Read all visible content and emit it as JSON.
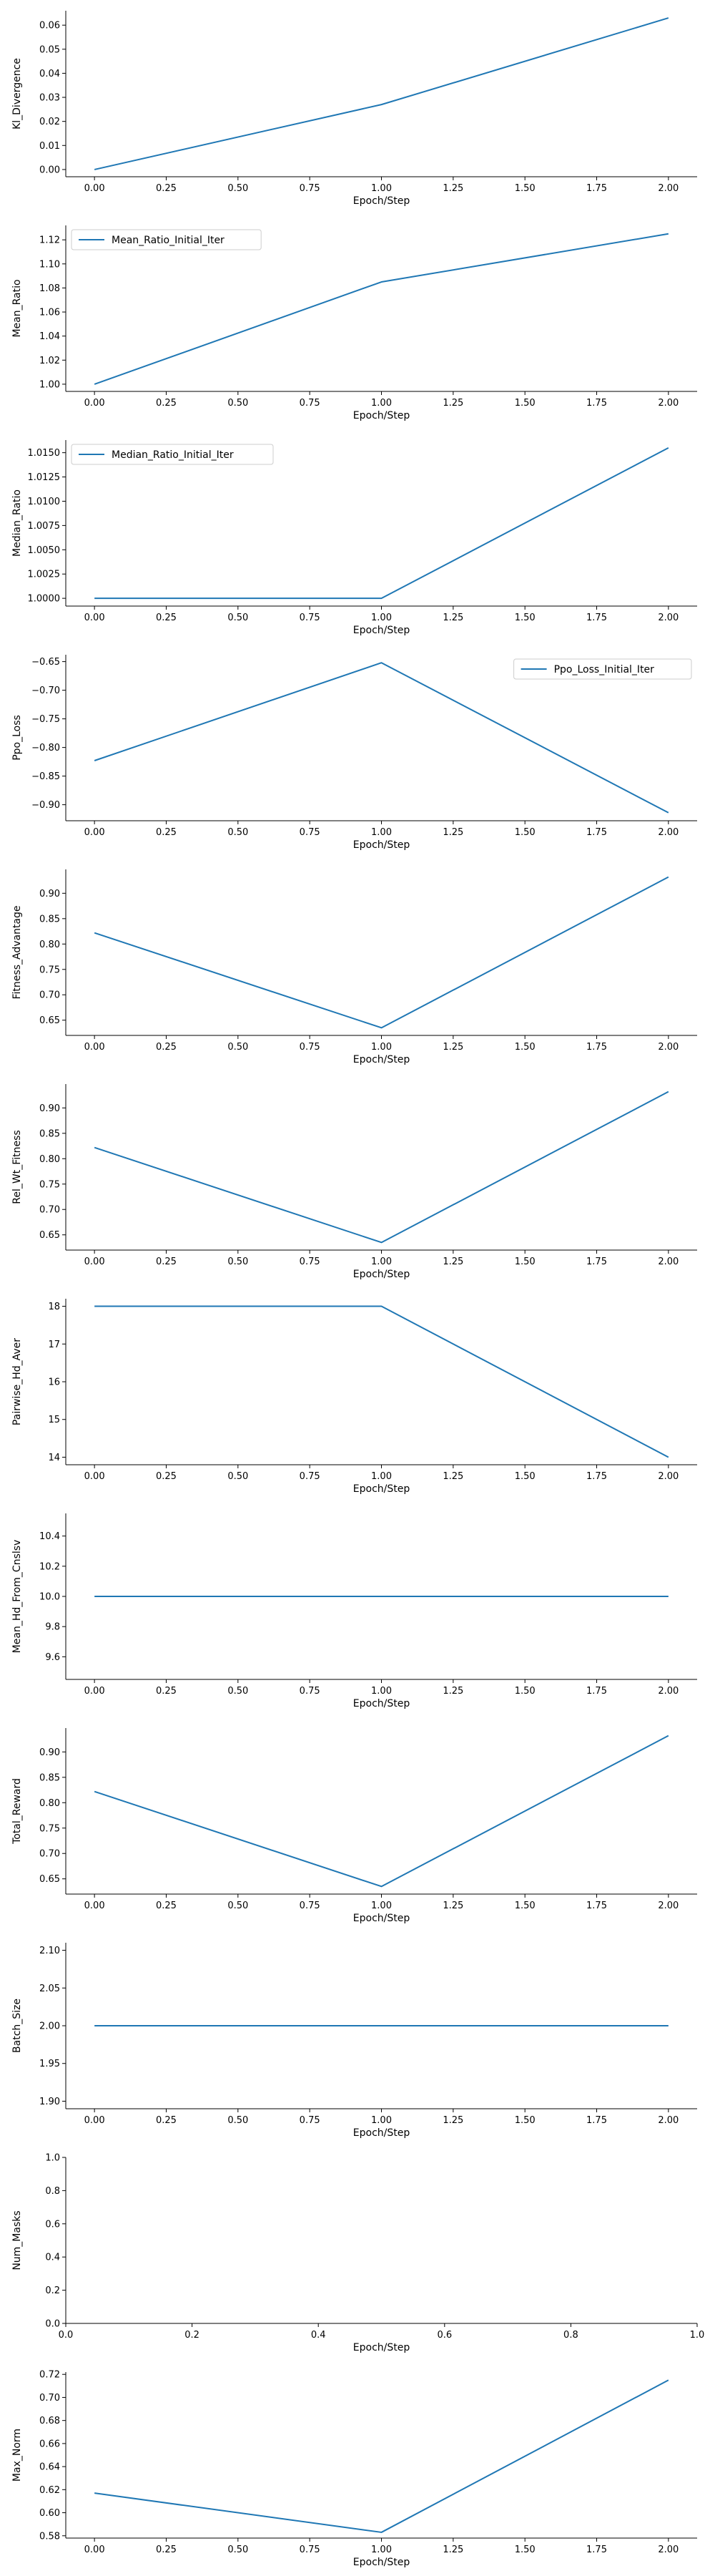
{
  "figure": {
    "line_color": "#1f77b4",
    "axis_color": "#000000",
    "legend_border_color": "#cccccc"
  },
  "chart_data": [
    {
      "type": "line",
      "xlabel": "Epoch/Step",
      "ylabel": "Kl_Divergence",
      "x": [
        0,
        1,
        2
      ],
      "series": [
        {
          "values": [
            0.0,
            0.027,
            0.063
          ]
        }
      ],
      "xlim": [
        -0.1,
        2.1
      ],
      "ylim": [
        -0.003,
        0.066
      ],
      "xticks": [
        0,
        0.25,
        0.5,
        0.75,
        1,
        1.25,
        1.5,
        1.75,
        2
      ],
      "xtick_labels": [
        "0.00",
        "0.25",
        "0.50",
        "0.75",
        "1.00",
        "1.25",
        "1.50",
        "1.75",
        "2.00"
      ],
      "yticks": [
        0,
        0.01,
        0.02,
        0.03,
        0.04,
        0.05,
        0.06
      ],
      "ytick_labels": [
        "0.00",
        "0.01",
        "0.02",
        "0.03",
        "0.04",
        "0.05",
        "0.06"
      ],
      "legend": null,
      "grid": false
    },
    {
      "type": "line",
      "xlabel": "Epoch/Step",
      "ylabel": "Mean_Ratio",
      "x": [
        0,
        1,
        2
      ],
      "series": [
        {
          "name": "Mean_Ratio_Initial_Iter",
          "values": [
            1.0,
            1.085,
            1.125
          ]
        }
      ],
      "xlim": [
        -0.1,
        2.1
      ],
      "ylim": [
        0.994,
        1.132
      ],
      "xticks": [
        0,
        0.25,
        0.5,
        0.75,
        1,
        1.25,
        1.5,
        1.75,
        2
      ],
      "xtick_labels": [
        "0.00",
        "0.25",
        "0.50",
        "0.75",
        "1.00",
        "1.25",
        "1.50",
        "1.75",
        "2.00"
      ],
      "yticks": [
        1.0,
        1.02,
        1.04,
        1.06,
        1.08,
        1.1,
        1.12
      ],
      "ytick_labels": [
        "1.00",
        "1.02",
        "1.04",
        "1.06",
        "1.08",
        "1.10",
        "1.12"
      ],
      "legend": "upper left",
      "grid": false
    },
    {
      "type": "line",
      "xlabel": "Epoch/Step",
      "ylabel": "Median_Ratio",
      "x": [
        0,
        1,
        2
      ],
      "series": [
        {
          "name": "Median_Ratio_Initial_Iter",
          "values": [
            1.0,
            1.0,
            1.0155
          ]
        }
      ],
      "xlim": [
        -0.1,
        2.1
      ],
      "ylim": [
        0.9992,
        1.0163
      ],
      "xticks": [
        0,
        0.25,
        0.5,
        0.75,
        1,
        1.25,
        1.5,
        1.75,
        2
      ],
      "xtick_labels": [
        "0.00",
        "0.25",
        "0.50",
        "0.75",
        "1.00",
        "1.25",
        "1.50",
        "1.75",
        "2.00"
      ],
      "yticks": [
        1.0,
        1.0025,
        1.005,
        1.0075,
        1.01,
        1.0125,
        1.015
      ],
      "ytick_labels": [
        "1.0000",
        "1.0025",
        "1.0050",
        "1.0075",
        "1.0100",
        "1.0125",
        "1.0150"
      ],
      "legend": "upper left",
      "grid": false
    },
    {
      "type": "line",
      "xlabel": "Epoch/Step",
      "ylabel": "Ppo_Loss",
      "x": [
        0,
        1,
        2
      ],
      "series": [
        {
          "name": "Ppo_Loss_Initial_Iter",
          "values": [
            -0.823,
            -0.652,
            -0.914
          ]
        }
      ],
      "xlim": [
        -0.1,
        2.1
      ],
      "ylim": [
        -0.928,
        -0.638
      ],
      "xticks": [
        0,
        0.25,
        0.5,
        0.75,
        1,
        1.25,
        1.5,
        1.75,
        2
      ],
      "xtick_labels": [
        "0.00",
        "0.25",
        "0.50",
        "0.75",
        "1.00",
        "1.25",
        "1.50",
        "1.75",
        "2.00"
      ],
      "yticks": [
        -0.9,
        -0.85,
        -0.8,
        -0.75,
        -0.7,
        -0.65
      ],
      "ytick_labels": [
        "−0.90",
        "−0.85",
        "−0.80",
        "−0.75",
        "−0.70",
        "−0.65"
      ],
      "legend": "upper right",
      "grid": false
    },
    {
      "type": "line",
      "xlabel": "Epoch/Step",
      "ylabel": "Fitness_Advantage",
      "x": [
        0,
        1,
        2
      ],
      "series": [
        {
          "values": [
            0.822,
            0.635,
            0.932
          ]
        }
      ],
      "xlim": [
        -0.1,
        2.1
      ],
      "ylim": [
        0.62,
        0.947
      ],
      "xticks": [
        0,
        0.25,
        0.5,
        0.75,
        1,
        1.25,
        1.5,
        1.75,
        2
      ],
      "xtick_labels": [
        "0.00",
        "0.25",
        "0.50",
        "0.75",
        "1.00",
        "1.25",
        "1.50",
        "1.75",
        "2.00"
      ],
      "yticks": [
        0.65,
        0.7,
        0.75,
        0.8,
        0.85,
        0.9
      ],
      "ytick_labels": [
        "0.65",
        "0.70",
        "0.75",
        "0.80",
        "0.85",
        "0.90"
      ],
      "legend": null,
      "grid": false
    },
    {
      "type": "line",
      "xlabel": "Epoch/Step",
      "ylabel": "Rel_Wt_Fitness",
      "x": [
        0,
        1,
        2
      ],
      "series": [
        {
          "values": [
            0.822,
            0.635,
            0.932
          ]
        }
      ],
      "xlim": [
        -0.1,
        2.1
      ],
      "ylim": [
        0.62,
        0.947
      ],
      "xticks": [
        0,
        0.25,
        0.5,
        0.75,
        1,
        1.25,
        1.5,
        1.75,
        2
      ],
      "xtick_labels": [
        "0.00",
        "0.25",
        "0.50",
        "0.75",
        "1.00",
        "1.25",
        "1.50",
        "1.75",
        "2.00"
      ],
      "yticks": [
        0.65,
        0.7,
        0.75,
        0.8,
        0.85,
        0.9
      ],
      "ytick_labels": [
        "0.65",
        "0.70",
        "0.75",
        "0.80",
        "0.85",
        "0.90"
      ],
      "legend": null,
      "grid": false
    },
    {
      "type": "line",
      "xlabel": "Epoch/Step",
      "ylabel": "Pairwise_Hd_Aver",
      "x": [
        0,
        1,
        2
      ],
      "series": [
        {
          "values": [
            18,
            18,
            14
          ]
        }
      ],
      "xlim": [
        -0.1,
        2.1
      ],
      "ylim": [
        13.8,
        18.2
      ],
      "xticks": [
        0,
        0.25,
        0.5,
        0.75,
        1,
        1.25,
        1.5,
        1.75,
        2
      ],
      "xtick_labels": [
        "0.00",
        "0.25",
        "0.50",
        "0.75",
        "1.00",
        "1.25",
        "1.50",
        "1.75",
        "2.00"
      ],
      "yticks": [
        14,
        15,
        16,
        17,
        18
      ],
      "ytick_labels": [
        "14",
        "15",
        "16",
        "17",
        "18"
      ],
      "legend": null,
      "grid": false
    },
    {
      "type": "line",
      "xlabel": "Epoch/Step",
      "ylabel": "Mean_Hd_From_Cnslsv",
      "x": [
        0,
        1,
        2
      ],
      "series": [
        {
          "values": [
            10,
            10,
            10
          ]
        }
      ],
      "xlim": [
        -0.1,
        2.1
      ],
      "ylim": [
        9.45,
        10.55
      ],
      "xticks": [
        0,
        0.25,
        0.5,
        0.75,
        1,
        1.25,
        1.5,
        1.75,
        2
      ],
      "xtick_labels": [
        "0.00",
        "0.25",
        "0.50",
        "0.75",
        "1.00",
        "1.25",
        "1.50",
        "1.75",
        "2.00"
      ],
      "yticks": [
        9.6,
        9.8,
        10.0,
        10.2,
        10.4
      ],
      "ytick_labels": [
        "9.6",
        "9.8",
        "10.0",
        "10.2",
        "10.4"
      ],
      "legend": null,
      "grid": false
    },
    {
      "type": "line",
      "xlabel": "Epoch/Step",
      "ylabel": "Total_Reward",
      "x": [
        0,
        1,
        2
      ],
      "series": [
        {
          "values": [
            0.822,
            0.635,
            0.932
          ]
        }
      ],
      "xlim": [
        -0.1,
        2.1
      ],
      "ylim": [
        0.62,
        0.947
      ],
      "xticks": [
        0,
        0.25,
        0.5,
        0.75,
        1,
        1.25,
        1.5,
        1.75,
        2
      ],
      "xtick_labels": [
        "0.00",
        "0.25",
        "0.50",
        "0.75",
        "1.00",
        "1.25",
        "1.50",
        "1.75",
        "2.00"
      ],
      "yticks": [
        0.65,
        0.7,
        0.75,
        0.8,
        0.85,
        0.9
      ],
      "ytick_labels": [
        "0.65",
        "0.70",
        "0.75",
        "0.80",
        "0.85",
        "0.90"
      ],
      "legend": null,
      "grid": false
    },
    {
      "type": "line",
      "xlabel": "Epoch/Step",
      "ylabel": "Batch_Size",
      "x": [
        0,
        1,
        2
      ],
      "series": [
        {
          "values": [
            2,
            2,
            2
          ]
        }
      ],
      "xlim": [
        -0.1,
        2.1
      ],
      "ylim": [
        1.89,
        2.11
      ],
      "xticks": [
        0,
        0.25,
        0.5,
        0.75,
        1,
        1.25,
        1.5,
        1.75,
        2
      ],
      "xtick_labels": [
        "0.00",
        "0.25",
        "0.50",
        "0.75",
        "1.00",
        "1.25",
        "1.50",
        "1.75",
        "2.00"
      ],
      "yticks": [
        1.9,
        1.95,
        2.0,
        2.05,
        2.1
      ],
      "ytick_labels": [
        "1.90",
        "1.95",
        "2.00",
        "2.05",
        "2.10"
      ],
      "legend": null,
      "grid": false
    },
    {
      "type": "line",
      "xlabel": "Epoch/Step",
      "ylabel": "Num_Masks",
      "x": [],
      "series": [],
      "xlim": [
        0,
        1
      ],
      "ylim": [
        0,
        1
      ],
      "xticks": [
        0,
        0.2,
        0.4,
        0.6,
        0.8,
        1.0
      ],
      "xtick_labels": [
        "0.0",
        "0.2",
        "0.4",
        "0.6",
        "0.8",
        "1.0"
      ],
      "yticks": [
        0,
        0.2,
        0.4,
        0.6,
        0.8,
        1.0
      ],
      "ytick_labels": [
        "0.0",
        "0.2",
        "0.4",
        "0.6",
        "0.8",
        "1.0"
      ],
      "legend": null,
      "grid": false
    },
    {
      "type": "line",
      "xlabel": "Epoch/Step",
      "ylabel": "Max_Norm",
      "x": [
        0,
        1,
        2
      ],
      "series": [
        {
          "values": [
            0.617,
            0.583,
            0.715
          ]
        }
      ],
      "xlim": [
        -0.1,
        2.1
      ],
      "ylim": [
        0.578,
        0.722
      ],
      "xticks": [
        0,
        0.25,
        0.5,
        0.75,
        1,
        1.25,
        1.5,
        1.75,
        2
      ],
      "xtick_labels": [
        "0.00",
        "0.25",
        "0.50",
        "0.75",
        "1.00",
        "1.25",
        "1.50",
        "1.75",
        "2.00"
      ],
      "yticks": [
        0.58,
        0.6,
        0.62,
        0.64,
        0.66,
        0.68,
        0.7,
        0.72
      ],
      "ytick_labels": [
        "0.58",
        "0.60",
        "0.62",
        "0.64",
        "0.66",
        "0.68",
        "0.70",
        "0.72"
      ],
      "legend": null,
      "grid": false
    }
  ]
}
